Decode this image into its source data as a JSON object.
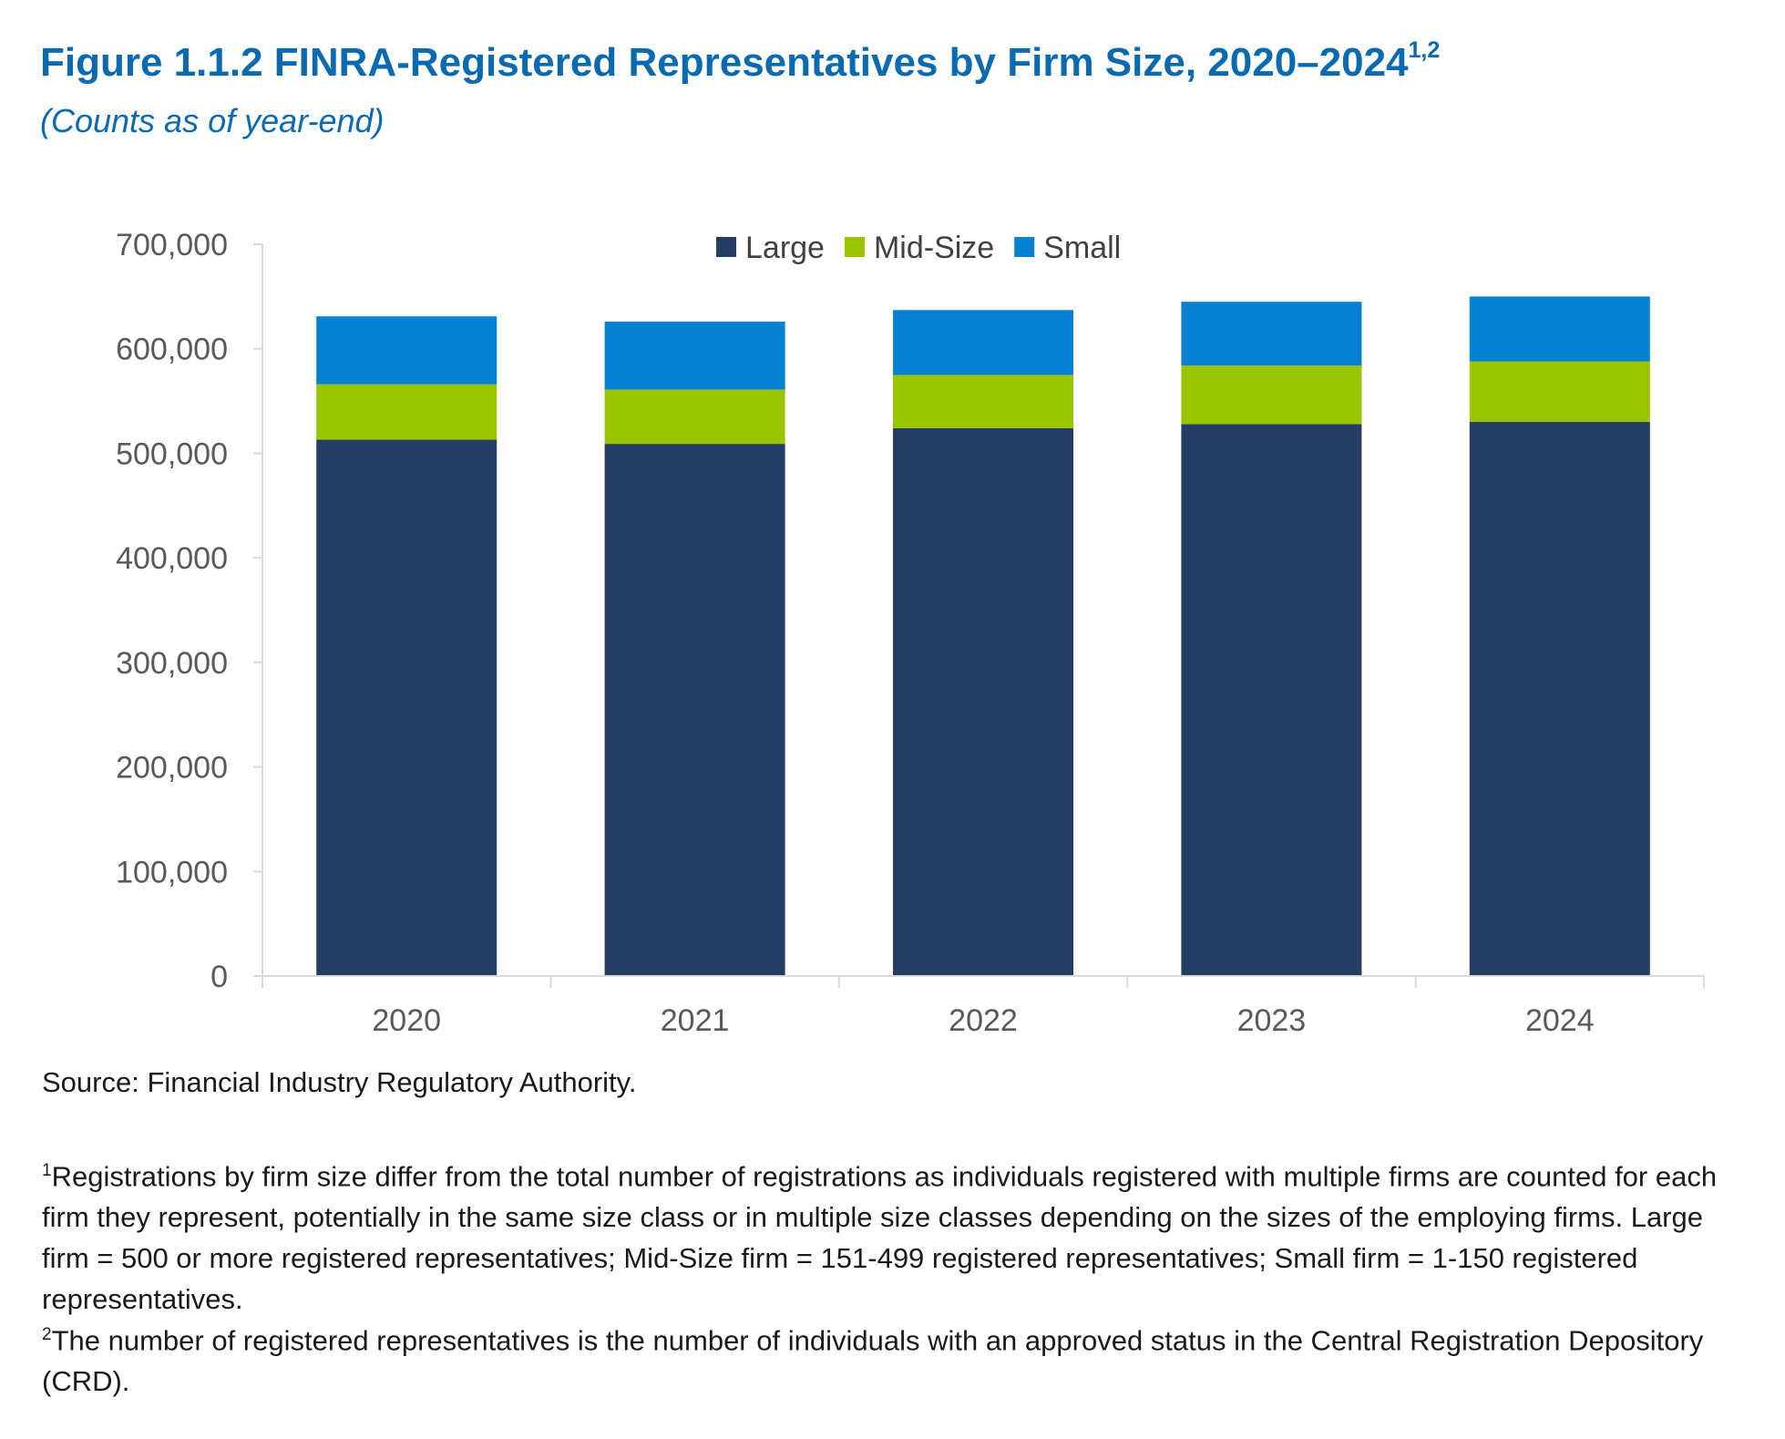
{
  "title": "Figure 1.1.2 FINRA-Registered Representatives by Firm Size, 2020–2024",
  "title_footnote_refs": "1,2",
  "subtitle": "(Counts as of year-end)",
  "source": "Source: Financial Industry Regulatory Authority.",
  "notes": [
    {
      "marker": "1",
      "text": "Registrations by firm size differ from the total number of registrations as individuals registered with multiple firms are counted for each firm they represent, potentially in the same size class or in multiple size classes depending on the sizes of the employing firms. Large firm = 500 or more registered representatives; Mid-Size firm = 151-499 registered representatives; Small firm = 1-150 registered representatives."
    },
    {
      "marker": "2",
      "text": "The number of registered representatives is the number of individuals with an approved status in the Central Registration Depository (CRD)."
    }
  ],
  "chart_data": {
    "type": "bar",
    "stacked": true,
    "categories": [
      "2020",
      "2021",
      "2022",
      "2023",
      "2024"
    ],
    "series": [
      {
        "name": "Large",
        "color": "#233d63",
        "values": [
          513000,
          509000,
          524000,
          528000,
          530000
        ]
      },
      {
        "name": "Mid-Size",
        "color": "#9bc400",
        "values": [
          53000,
          52000,
          51000,
          56000,
          58000
        ]
      },
      {
        "name": "Small",
        "color": "#0681d2",
        "values": [
          65000,
          65000,
          62000,
          61000,
          62000
        ]
      }
    ],
    "ylim": [
      0,
      700000
    ],
    "yticks": [
      0,
      100000,
      200000,
      300000,
      400000,
      500000,
      600000,
      700000
    ],
    "ytick_labels": [
      "0",
      "100,000",
      "200,000",
      "300,000",
      "400,000",
      "500,000",
      "600,000",
      "700,000"
    ],
    "xlabel": "",
    "ylabel": "",
    "legend_position": "top-center",
    "grid": false
  }
}
